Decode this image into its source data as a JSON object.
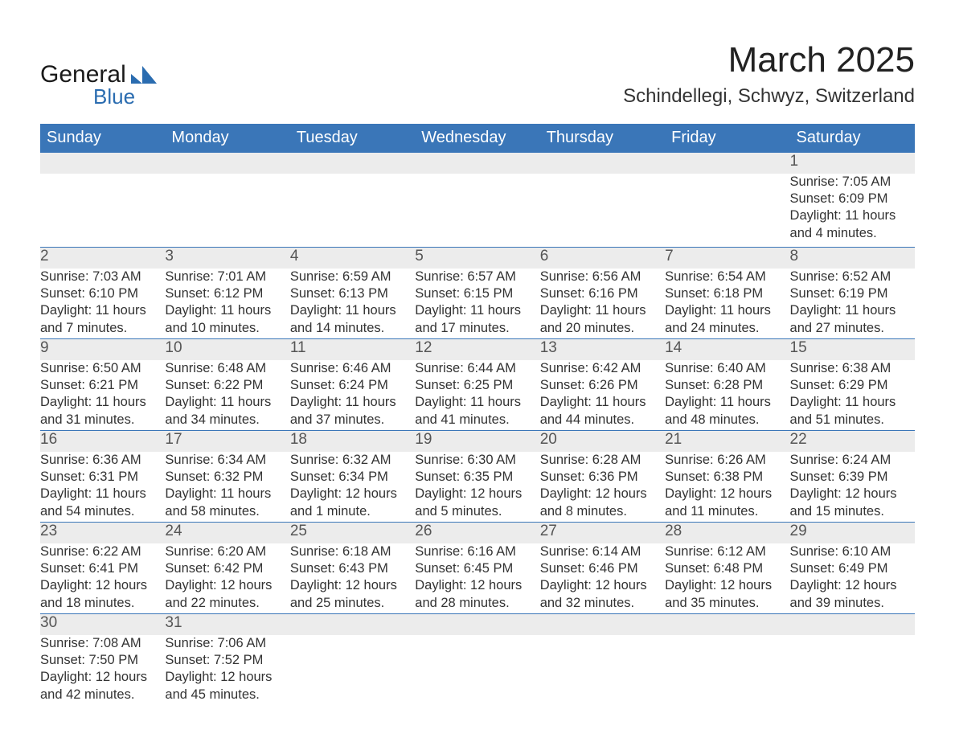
{
  "logo": {
    "general": "General",
    "blue": "Blue",
    "brand_color": "#2a6cb0"
  },
  "title": "March 2025",
  "location": "Schindellegi, Schwyz, Switzerland",
  "colors": {
    "header_bg": "#3a76b8",
    "header_text": "#ffffff",
    "daynum_bg": "#ececec",
    "border": "#3a76b8",
    "text": "#333333"
  },
  "weekdays": [
    "Sunday",
    "Monday",
    "Tuesday",
    "Wednesday",
    "Thursday",
    "Friday",
    "Saturday"
  ],
  "weeks": [
    [
      {
        "n": "",
        "d": ""
      },
      {
        "n": "",
        "d": ""
      },
      {
        "n": "",
        "d": ""
      },
      {
        "n": "",
        "d": ""
      },
      {
        "n": "",
        "d": ""
      },
      {
        "n": "",
        "d": ""
      },
      {
        "n": "1",
        "d": "Sunrise: 7:05 AM\nSunset: 6:09 PM\nDaylight: 11 hours and 4 minutes."
      }
    ],
    [
      {
        "n": "2",
        "d": "Sunrise: 7:03 AM\nSunset: 6:10 PM\nDaylight: 11 hours and 7 minutes."
      },
      {
        "n": "3",
        "d": "Sunrise: 7:01 AM\nSunset: 6:12 PM\nDaylight: 11 hours and 10 minutes."
      },
      {
        "n": "4",
        "d": "Sunrise: 6:59 AM\nSunset: 6:13 PM\nDaylight: 11 hours and 14 minutes."
      },
      {
        "n": "5",
        "d": "Sunrise: 6:57 AM\nSunset: 6:15 PM\nDaylight: 11 hours and 17 minutes."
      },
      {
        "n": "6",
        "d": "Sunrise: 6:56 AM\nSunset: 6:16 PM\nDaylight: 11 hours and 20 minutes."
      },
      {
        "n": "7",
        "d": "Sunrise: 6:54 AM\nSunset: 6:18 PM\nDaylight: 11 hours and 24 minutes."
      },
      {
        "n": "8",
        "d": "Sunrise: 6:52 AM\nSunset: 6:19 PM\nDaylight: 11 hours and 27 minutes."
      }
    ],
    [
      {
        "n": "9",
        "d": "Sunrise: 6:50 AM\nSunset: 6:21 PM\nDaylight: 11 hours and 31 minutes."
      },
      {
        "n": "10",
        "d": "Sunrise: 6:48 AM\nSunset: 6:22 PM\nDaylight: 11 hours and 34 minutes."
      },
      {
        "n": "11",
        "d": "Sunrise: 6:46 AM\nSunset: 6:24 PM\nDaylight: 11 hours and 37 minutes."
      },
      {
        "n": "12",
        "d": "Sunrise: 6:44 AM\nSunset: 6:25 PM\nDaylight: 11 hours and 41 minutes."
      },
      {
        "n": "13",
        "d": "Sunrise: 6:42 AM\nSunset: 6:26 PM\nDaylight: 11 hours and 44 minutes."
      },
      {
        "n": "14",
        "d": "Sunrise: 6:40 AM\nSunset: 6:28 PM\nDaylight: 11 hours and 48 minutes."
      },
      {
        "n": "15",
        "d": "Sunrise: 6:38 AM\nSunset: 6:29 PM\nDaylight: 11 hours and 51 minutes."
      }
    ],
    [
      {
        "n": "16",
        "d": "Sunrise: 6:36 AM\nSunset: 6:31 PM\nDaylight: 11 hours and 54 minutes."
      },
      {
        "n": "17",
        "d": "Sunrise: 6:34 AM\nSunset: 6:32 PM\nDaylight: 11 hours and 58 minutes."
      },
      {
        "n": "18",
        "d": "Sunrise: 6:32 AM\nSunset: 6:34 PM\nDaylight: 12 hours and 1 minute."
      },
      {
        "n": "19",
        "d": "Sunrise: 6:30 AM\nSunset: 6:35 PM\nDaylight: 12 hours and 5 minutes."
      },
      {
        "n": "20",
        "d": "Sunrise: 6:28 AM\nSunset: 6:36 PM\nDaylight: 12 hours and 8 minutes."
      },
      {
        "n": "21",
        "d": "Sunrise: 6:26 AM\nSunset: 6:38 PM\nDaylight: 12 hours and 11 minutes."
      },
      {
        "n": "22",
        "d": "Sunrise: 6:24 AM\nSunset: 6:39 PM\nDaylight: 12 hours and 15 minutes."
      }
    ],
    [
      {
        "n": "23",
        "d": "Sunrise: 6:22 AM\nSunset: 6:41 PM\nDaylight: 12 hours and 18 minutes."
      },
      {
        "n": "24",
        "d": "Sunrise: 6:20 AM\nSunset: 6:42 PM\nDaylight: 12 hours and 22 minutes."
      },
      {
        "n": "25",
        "d": "Sunrise: 6:18 AM\nSunset: 6:43 PM\nDaylight: 12 hours and 25 minutes."
      },
      {
        "n": "26",
        "d": "Sunrise: 6:16 AM\nSunset: 6:45 PM\nDaylight: 12 hours and 28 minutes."
      },
      {
        "n": "27",
        "d": "Sunrise: 6:14 AM\nSunset: 6:46 PM\nDaylight: 12 hours and 32 minutes."
      },
      {
        "n": "28",
        "d": "Sunrise: 6:12 AM\nSunset: 6:48 PM\nDaylight: 12 hours and 35 minutes."
      },
      {
        "n": "29",
        "d": "Sunrise: 6:10 AM\nSunset: 6:49 PM\nDaylight: 12 hours and 39 minutes."
      }
    ],
    [
      {
        "n": "30",
        "d": "Sunrise: 7:08 AM\nSunset: 7:50 PM\nDaylight: 12 hours and 42 minutes."
      },
      {
        "n": "31",
        "d": "Sunrise: 7:06 AM\nSunset: 7:52 PM\nDaylight: 12 hours and 45 minutes."
      },
      {
        "n": "",
        "d": ""
      },
      {
        "n": "",
        "d": ""
      },
      {
        "n": "",
        "d": ""
      },
      {
        "n": "",
        "d": ""
      },
      {
        "n": "",
        "d": ""
      }
    ]
  ]
}
